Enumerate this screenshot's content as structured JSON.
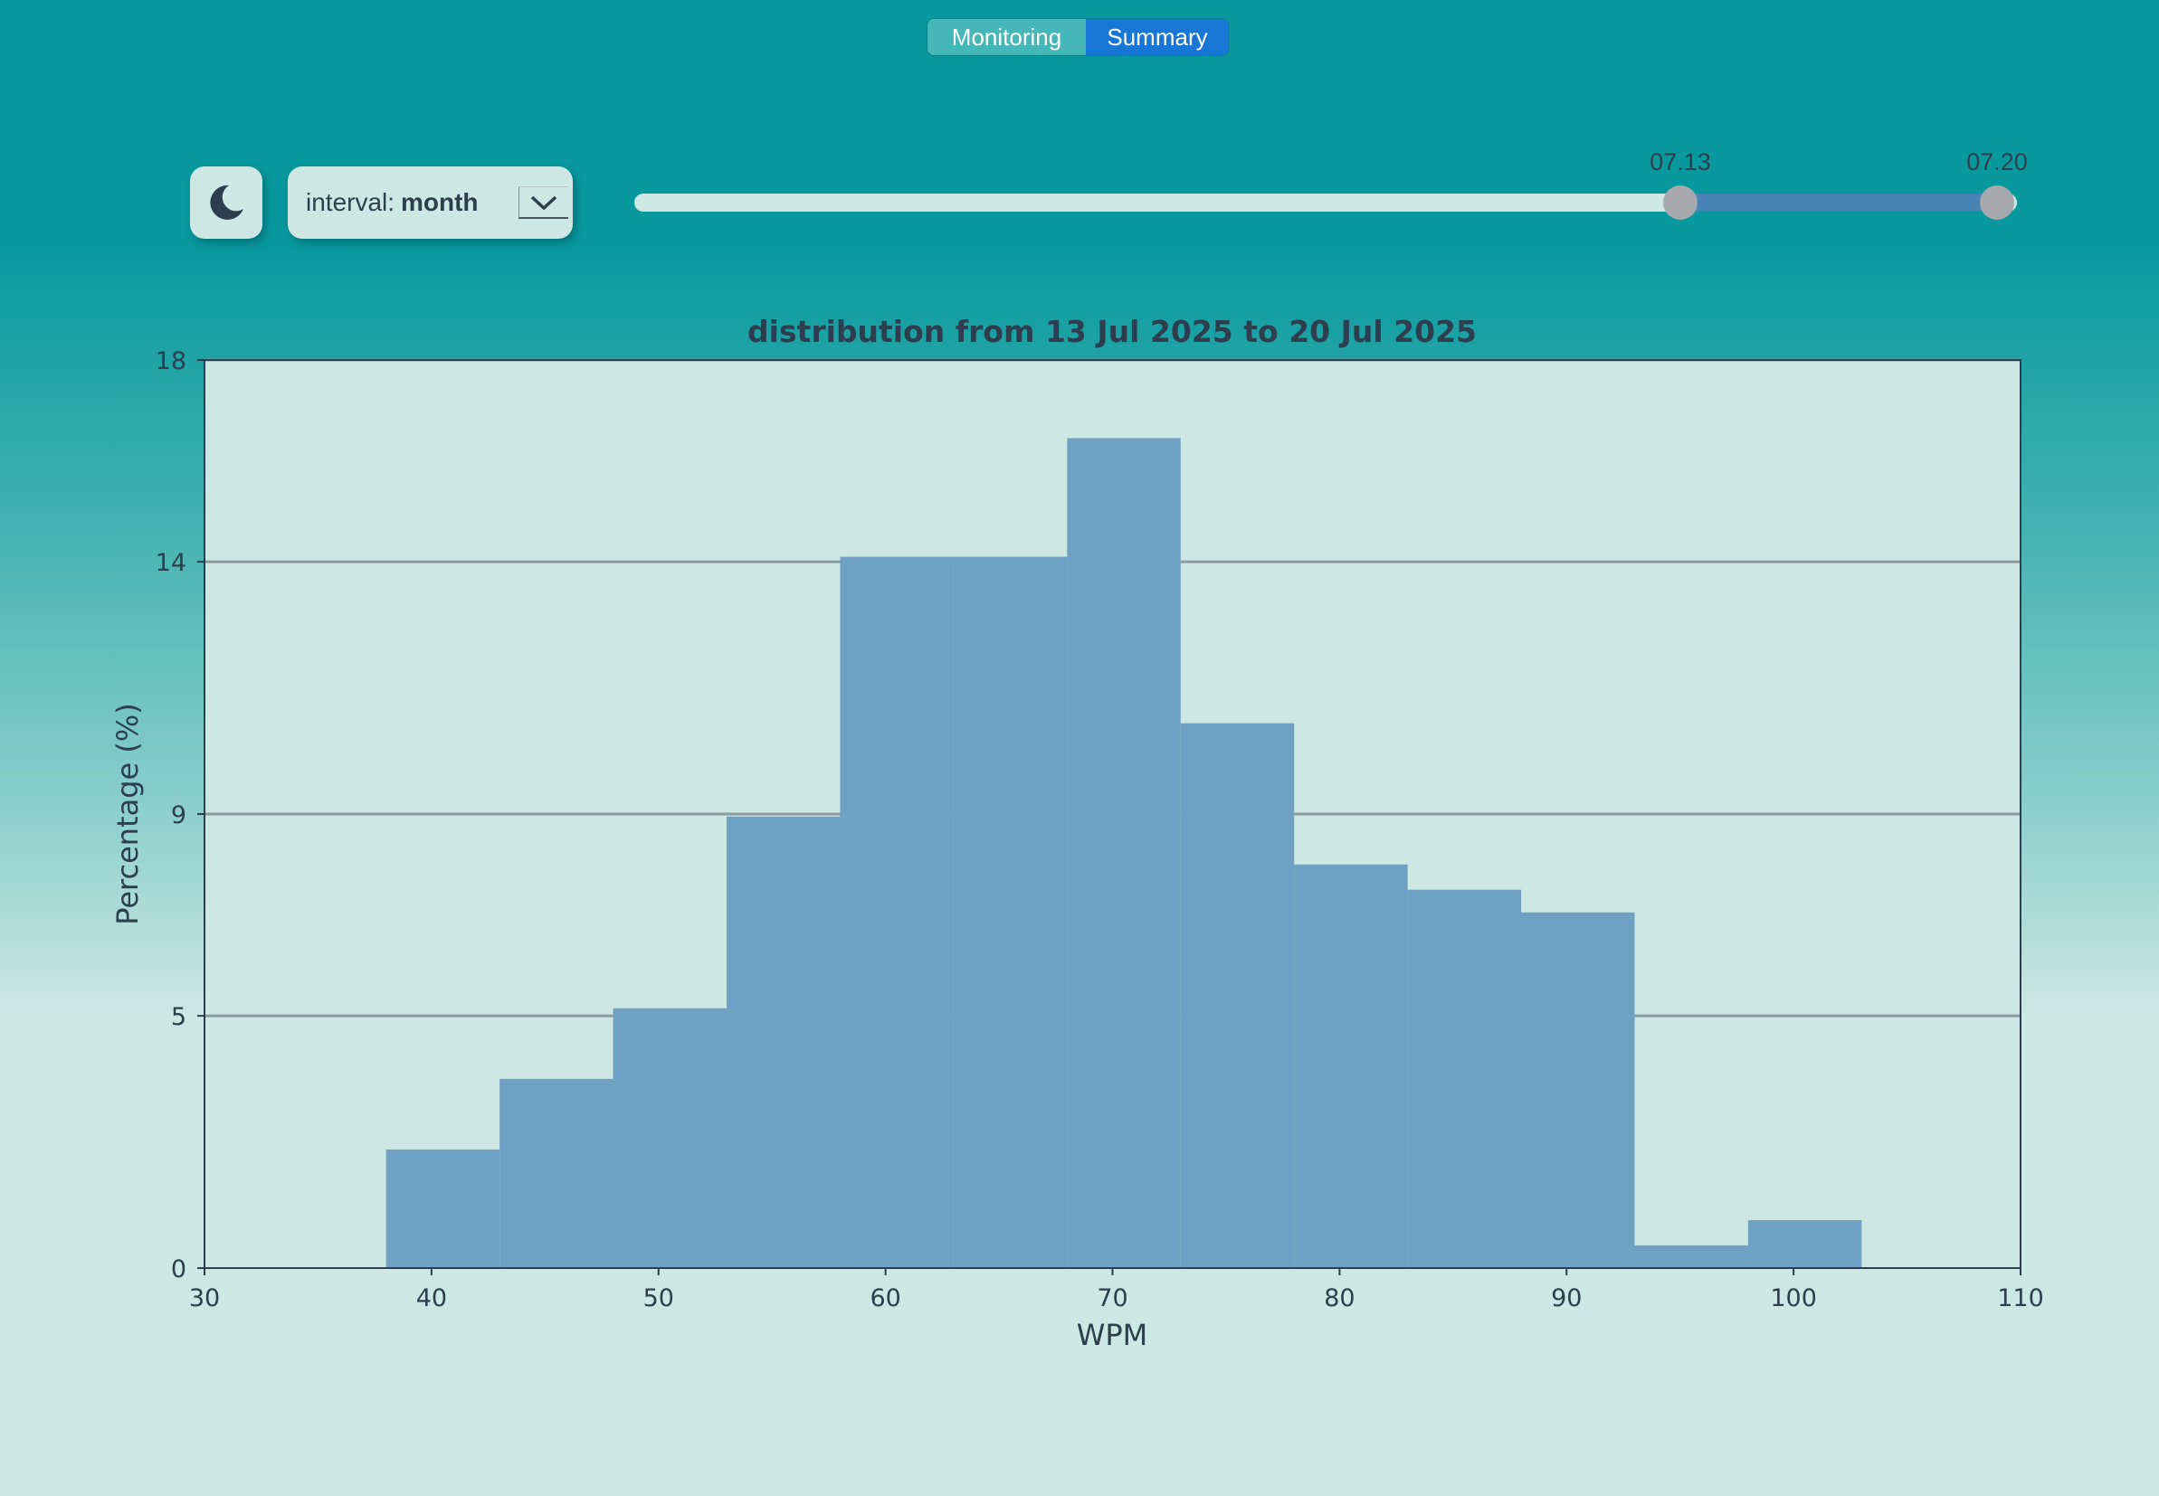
{
  "tabs": {
    "monitoring": "Monitoring",
    "summary": "Summary",
    "active": "Summary"
  },
  "controls": {
    "theme_icon": "moon-icon",
    "interval_label": "interval:",
    "interval_value": "month",
    "interval_arrow_icon": "chevron-down-icon"
  },
  "date_slider": {
    "start_label": "07.13",
    "end_label": "07.20"
  },
  "colors": {
    "accent": "#1877d6",
    "bar": "#6fa1c4",
    "plot_bg": "#cde7e3",
    "slider_range": "#4682b4",
    "text": "#2e3e4e"
  },
  "chart_data": {
    "type": "bar",
    "title": "distribution from 13 Jul 2025 to 20 Jul 2025",
    "xlabel": "WPM",
    "ylabel": "Percentage (%)",
    "xlim": [
      30,
      110
    ],
    "ylim": [
      0,
      18
    ],
    "xticks": [
      30,
      40,
      50,
      60,
      70,
      80,
      90,
      100,
      110
    ],
    "yticks": [
      0,
      5,
      9,
      14,
      18
    ],
    "grid": "horizontal",
    "bins": [
      {
        "start": 38,
        "end": 43,
        "value": 2.35
      },
      {
        "start": 43,
        "end": 48,
        "value": 3.75
      },
      {
        "start": 48,
        "end": 53,
        "value": 5.15
      },
      {
        "start": 53,
        "end": 58,
        "value": 8.95
      },
      {
        "start": 58,
        "end": 63,
        "value": 14.1
      },
      {
        "start": 63,
        "end": 68,
        "value": 14.1
      },
      {
        "start": 68,
        "end": 73,
        "value": 16.45
      },
      {
        "start": 73,
        "end": 78,
        "value": 10.8
      },
      {
        "start": 78,
        "end": 83,
        "value": 8.0
      },
      {
        "start": 83,
        "end": 88,
        "value": 7.5
      },
      {
        "start": 88,
        "end": 93,
        "value": 7.05
      },
      {
        "start": 93,
        "end": 98,
        "value": 0.45
      },
      {
        "start": 98,
        "end": 103,
        "value": 0.95
      }
    ]
  }
}
